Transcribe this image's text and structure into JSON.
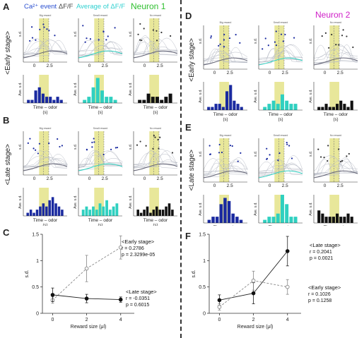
{
  "panel_letters": {
    "a": "A",
    "b": "B",
    "c": "C",
    "d": "D",
    "e": "E",
    "f": "F"
  },
  "legend": {
    "ca_event": "Ca²⁺ event",
    "delta_ff": "ΔF/F",
    "average": "Average of ΔF/F",
    "neuron1": "Neuron 1",
    "neuron2": "Neuron 2"
  },
  "stage_labels": {
    "early": "<Early stage>",
    "late": "<Late stage>"
  },
  "mini": {
    "top_titles": [
      "Big reward",
      "Small reward",
      "No reward"
    ],
    "y_top": "s.d.",
    "y_bottom": "Ave. s.d.",
    "x_ticks": [
      "0",
      "2.5"
    ],
    "x_label": "Time – odor",
    "x_unit": "(s)"
  },
  "colors": {
    "big": "#1a2aa0",
    "small": "#2fd0c0",
    "none": "#111111",
    "window": "#e8e79a",
    "neuron1": "#2fbf2f",
    "neuron2": "#d020c8",
    "ca_text": "#2a4fd0",
    "avg_text": "#2fd0d0"
  },
  "chart_data": [
    {
      "id": "C",
      "type": "line",
      "xlabel": "Reward size (μl)",
      "ylabel": "s.d.",
      "x": [
        0,
        2,
        4
      ],
      "xlim": [
        -0.6,
        4.8
      ],
      "ylim": [
        0,
        1.5
      ],
      "yticks": [
        0,
        0.5,
        1.0,
        1.5
      ],
      "series": [
        {
          "name": "Early stage",
          "values": [
            0.25,
            0.85,
            1.25
          ],
          "err": [
            0.06,
            0.25,
            0.22
          ],
          "style": "dashed",
          "marker": "open",
          "stats": [
            "<Early stage>",
            "r = 0.2786",
            "p = 2.3299e-05"
          ]
        },
        {
          "name": "Late stage",
          "values": [
            0.35,
            0.28,
            0.26
          ],
          "err": [
            0.13,
            0.08,
            0.05
          ],
          "style": "solid",
          "marker": "filled",
          "stats": [
            "<Late stage>",
            "r = -0.0351",
            "p = 0.6015"
          ]
        }
      ]
    },
    {
      "id": "F",
      "type": "line",
      "xlabel": "Reward size (μl)",
      "ylabel": "s.d.",
      "x": [
        0,
        2,
        4
      ],
      "xlim": [
        -0.6,
        4.8
      ],
      "ylim": [
        0,
        1.5
      ],
      "yticks": [
        0,
        0.5,
        1.0,
        1.5
      ],
      "series": [
        {
          "name": "Late stage",
          "values": [
            0.25,
            0.38,
            1.18
          ],
          "err": [
            0.1,
            0.2,
            0.28
          ],
          "style": "solid",
          "marker": "filled",
          "stats": [
            "<Late stage>",
            "r = 0.2041",
            "p = 0.0021"
          ]
        },
        {
          "name": "Early stage",
          "values": [
            0.12,
            0.62,
            0.5
          ],
          "err": [
            0.06,
            0.18,
            0.14
          ],
          "style": "dashed",
          "marker": "open",
          "stats": [
            "<Early stage>",
            "r = 0.1026",
            "p = 0.1258"
          ]
        }
      ]
    }
  ],
  "histograms": {
    "A": [
      [
        1,
        1,
        4,
        5,
        3,
        2,
        2,
        1,
        2,
        1
      ],
      [
        1,
        2,
        5,
        8,
        4,
        2,
        2,
        1
      ],
      [
        1,
        1,
        3,
        2,
        2,
        1,
        2,
        3
      ]
    ],
    "B": [
      [
        1,
        2,
        1,
        2,
        3,
        4,
        3,
        5,
        6,
        4,
        3,
        2
      ],
      [
        2,
        3,
        2,
        3,
        2,
        4,
        3,
        5,
        2,
        3,
        4
      ],
      [
        2,
        1,
        2,
        3,
        1,
        2,
        3,
        2,
        2,
        3,
        4,
        2
      ]
    ],
    "D": [
      [
        1,
        1,
        2,
        2,
        1,
        6,
        8,
        3,
        2,
        1
      ],
      [
        1,
        2,
        3,
        2,
        5,
        3,
        2,
        2
      ],
      [
        1,
        1,
        2,
        1,
        1,
        2,
        3,
        2,
        1,
        3
      ]
    ],
    "E": [
      [
        1,
        2,
        2,
        6,
        8,
        7,
        3,
        2,
        1
      ],
      [
        1,
        2,
        2,
        3,
        9,
        6,
        2,
        2
      ],
      [
        4,
        3,
        2,
        2,
        2,
        3,
        2,
        2,
        3,
        2
      ]
    ]
  }
}
